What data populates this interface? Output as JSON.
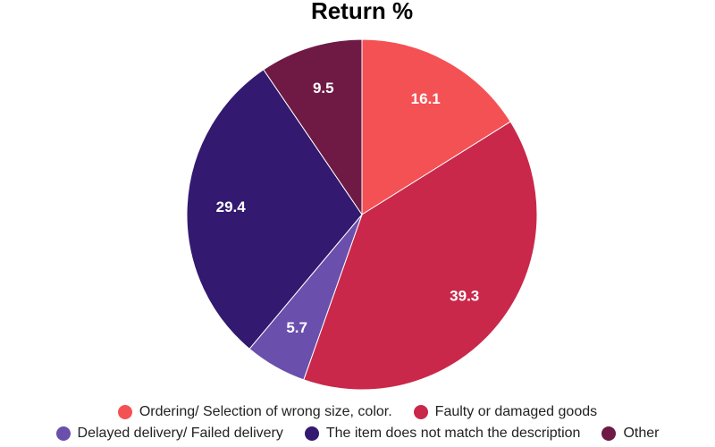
{
  "chart_data": {
    "type": "pie",
    "title": "Return %",
    "categories": [
      "Ordering/ Selection of wrong size, color.",
      "Faulty or damaged goods",
      "Delayed delivery/ Failed delivery",
      "The item does not match the description",
      "Other"
    ],
    "values": [
      16.1,
      39.3,
      5.7,
      29.4,
      9.5
    ],
    "colors": [
      "#f45154",
      "#c9284a",
      "#6a4fad",
      "#33196f",
      "#6e1a45"
    ]
  }
}
